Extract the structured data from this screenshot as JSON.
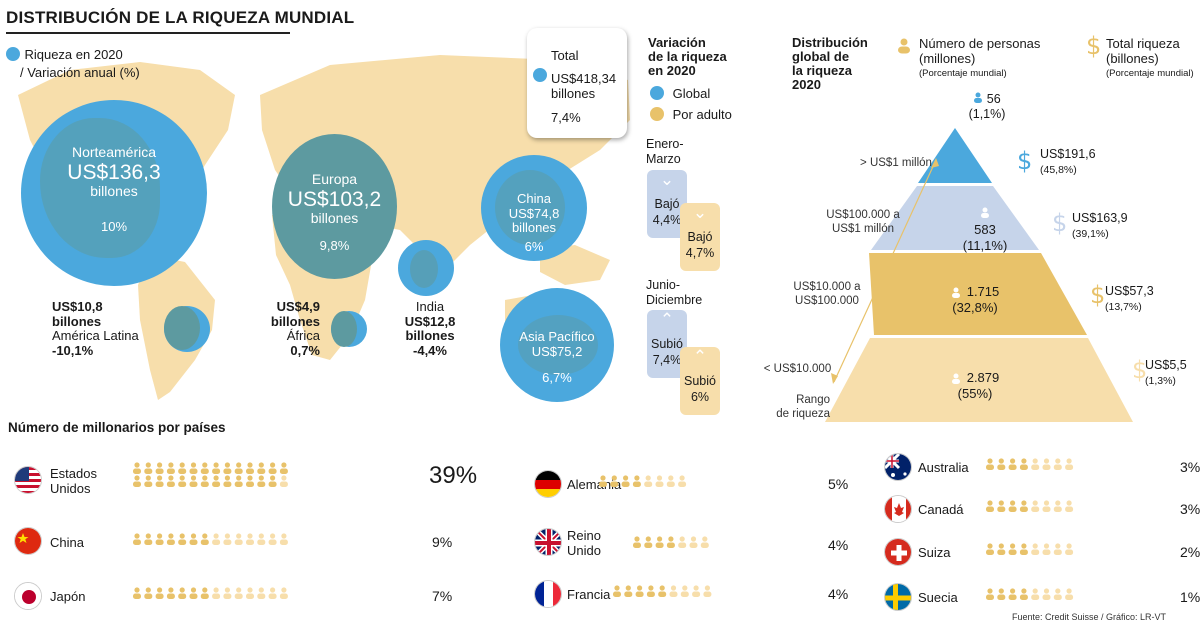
{
  "title": "DISTRIBUCIÓN DE LA RIQUEZA MUNDIAL",
  "legend": {
    "line1": "Riqueza en 2020",
    "line2": "/ Variación anual (%)"
  },
  "colors": {
    "global": "#4ba8dd",
    "adult": "#e8c26a",
    "map": "#f7deab",
    "circle_teal": "#5d9aa0",
    "pyr_top": "#4ba8dd",
    "pyr_2": "#c6d4ea",
    "pyr_3": "#e8c26a",
    "pyr_4": "#f7deab"
  },
  "regions": {
    "na": {
      "name": "Norteamérica",
      "value": "US$136,3",
      "unit": "billones",
      "pct": "10%"
    },
    "eu": {
      "name": "Europa",
      "value": "US$103,2",
      "unit": "billones",
      "pct": "9,8%"
    },
    "cn": {
      "name": "China",
      "value": "US$74,8",
      "unit": "billones",
      "pct": "6%"
    },
    "ap": {
      "name": "Asia Pacífico",
      "value": "US$75,2",
      "pct": "6,7%"
    },
    "la": {
      "value": "US$10,8",
      "unit": "billones",
      "name": "América Latina",
      "pct": "-10,1%"
    },
    "af": {
      "value": "US$4,9",
      "unit": "billones",
      "name": "África",
      "pct": "0,7%"
    },
    "in": {
      "name": "India",
      "value": "US$12,8",
      "unit": "billones",
      "pct": "-4,4%"
    }
  },
  "total": {
    "label": "Total",
    "value": "US$418,34",
    "unit": "billones",
    "pct": "7,4%"
  },
  "variacion": {
    "title1": "Variación",
    "title2": "de la riqueza",
    "title3": "en 2020",
    "global": "Global",
    "adult": "Por adulto",
    "p1_l1": "Enero-",
    "p1_l2": "Marzo",
    "p1_global_word": "Bajó",
    "p1_global_val": "4,4%",
    "p1_adult_word": "Bajó",
    "p1_adult_val": "4,7%",
    "p2_l1": "Junio-",
    "p2_l2": "Diciembre",
    "p2_global_word": "Subió",
    "p2_global_val": "7,4%",
    "p2_adult_word": "Subió",
    "p2_adult_val": "6%"
  },
  "pyramid": {
    "title1": "Distribución",
    "title2": "global de",
    "title3": "la riqueza",
    "title4": "2020",
    "people_legend1": "Número de personas",
    "people_legend2": "(millones)",
    "people_legend3": "(Porcentaje mundial)",
    "money_legend1": "Total riqueza",
    "money_legend2": "(billones)",
    "money_legend3": "(Porcentaje mundial)",
    "axis_label1": "Rango",
    "axis_label2": "de riqueza",
    "tiers": [
      {
        "range": "> US$1 millón",
        "people": "56",
        "people_pct": "(1,1%)",
        "wealth": "US$191,6",
        "wealth_pct": "(45,8%)"
      },
      {
        "range1": "US$100.000 a",
        "range2": "US$1 millón",
        "people": "583",
        "people_pct": "(11,1%)",
        "wealth": "US$163,9",
        "wealth_pct": "(39,1%)"
      },
      {
        "range1": "US$10.000 a",
        "range2": "US$100.000",
        "people": "1.715",
        "people_pct": "(32,8%)",
        "wealth": "US$57,3",
        "wealth_pct": "(13,7%)"
      },
      {
        "range": "< US$10.000",
        "people": "2.879",
        "people_pct": "(55%)",
        "wealth": "US$5,5",
        "wealth_pct": "(1,3%)"
      }
    ]
  },
  "millionaires_title": "Número de millonarios por países",
  "countries": [
    {
      "name1": "Estados",
      "name2": "Unidos",
      "pct": "39%",
      "value": 39
    },
    {
      "name1": "China",
      "pct": "9%",
      "value": 9
    },
    {
      "name1": "Japón",
      "pct": "7%",
      "value": 7
    },
    {
      "name1": "Alemania",
      "pct": "5%",
      "value": 5
    },
    {
      "name1": "Reino",
      "name2": "Unido",
      "pct": "4%",
      "value": 4
    },
    {
      "name1": "Francia",
      "pct": "4%",
      "value": 4
    },
    {
      "name1": "Australia",
      "pct": "3%",
      "value": 3
    },
    {
      "name1": "Canadá",
      "pct": "3%",
      "value": 3
    },
    {
      "name1": "Suiza",
      "pct": "2%",
      "value": 2
    },
    {
      "name1": "Suecia",
      "pct": "1%",
      "value": 1
    }
  ],
  "source": "Fuente: Credit Suisse / Gráfico: LR-VT",
  "chart_data": [
    {
      "type": "bubble-map",
      "title": "DISTRIBUCIÓN DE LA RIQUEZA MUNDIAL",
      "legend": "Riqueza en 2020 / Variación anual (%)",
      "categories": [
        "Norteamérica",
        "Europa",
        "China",
        "Asia Pacífico",
        "India",
        "América Latina",
        "África"
      ],
      "series": [
        {
          "name": "Riqueza en 2020",
          "unit": "billones US$",
          "values": [
            136.3,
            103.2,
            74.8,
            75.2,
            12.8,
            10.8,
            4.9
          ]
        },
        {
          "name": "Variación anual (%)",
          "values": [
            10,
            9.8,
            6,
            6.7,
            -4.4,
            -10.1,
            0.7
          ]
        }
      ],
      "total": 418.34,
      "total_pct": 7.4
    },
    {
      "type": "table",
      "title": "Variación de la riqueza en 2020",
      "categories": [
        "Enero-Marzo",
        "Junio-Diciembre"
      ],
      "series": [
        {
          "name": "Global",
          "values": [
            -4.4,
            7.4
          ]
        },
        {
          "name": "Por adulto",
          "values": [
            -4.7,
            6
          ]
        }
      ]
    },
    {
      "type": "pyramid",
      "title": "Distribución global de la riqueza 2020",
      "categories": [
        "> US$1 millón",
        "US$100.000 a US$1 millón",
        "US$10.000 a US$100.000",
        "< US$10.000"
      ],
      "series": [
        {
          "name": "Número de personas (millones)",
          "values": [
            56,
            583,
            1715,
            2879
          ]
        },
        {
          "name": "Número de personas (Porcentaje mundial)",
          "values": [
            1.1,
            11.1,
            32.8,
            55
          ]
        },
        {
          "name": "Total riqueza (billones)",
          "values": [
            191.6,
            163.9,
            57.3,
            5.5
          ]
        },
        {
          "name": "Total riqueza (Porcentaje mundial)",
          "values": [
            45.8,
            39.1,
            13.7,
            1.3
          ]
        }
      ]
    },
    {
      "type": "bar",
      "title": "Número de millonarios por países",
      "categories": [
        "Estados Unidos",
        "China",
        "Japón",
        "Alemania",
        "Reino Unido",
        "Francia",
        "Australia",
        "Canadá",
        "Suiza",
        "Suecia"
      ],
      "values": [
        39,
        9,
        7,
        5,
        4,
        4,
        3,
        3,
        2,
        1
      ]
    }
  ]
}
